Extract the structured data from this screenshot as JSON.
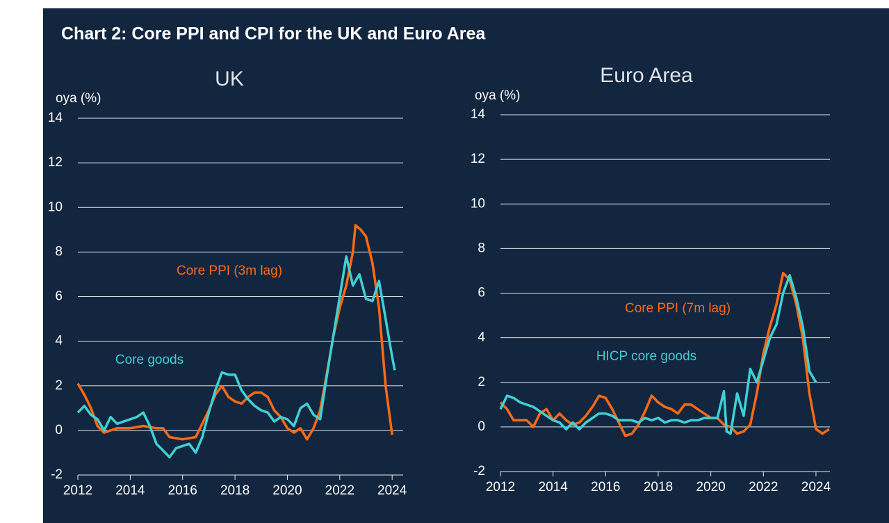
{
  "title": "Chart 2: Core PPI and CPI for the UK and Euro Area",
  "chart_data": [
    {
      "type": "line",
      "title": "UK",
      "ylabel": "oya (%)",
      "xlim": [
        2012,
        2024.42
      ],
      "xticks": [
        2012,
        2014,
        2016,
        2018,
        2020,
        2022,
        2024
      ],
      "ylim": [
        -2,
        14
      ],
      "yticks": [
        -2,
        0,
        2,
        4,
        6,
        8,
        10,
        12,
        14
      ],
      "grid": true,
      "series": [
        {
          "name": "Core PPI (3m lag)",
          "color": "#ff6a13",
          "x": [
            2012,
            2012.25,
            2012.5,
            2012.75,
            2013,
            2013.5,
            2014,
            2014.5,
            2015,
            2015.25,
            2015.5,
            2016,
            2016.5,
            2016.75,
            2017,
            2017.25,
            2017.5,
            2017.75,
            2018,
            2018.25,
            2018.5,
            2018.75,
            2019,
            2019.25,
            2019.5,
            2019.75,
            2020,
            2020.25,
            2020.5,
            2020.75,
            2021,
            2021.25,
            2021.5,
            2021.75,
            2022,
            2022.25,
            2022.5,
            2022.6,
            2022.8,
            2023,
            2023.25,
            2023.5,
            2023.75,
            2024
          ],
          "values": [
            2.1,
            1.6,
            1.0,
            0.2,
            -0.1,
            0.1,
            0.1,
            0.2,
            0.1,
            0.1,
            -0.3,
            -0.4,
            -0.3,
            0.3,
            0.9,
            1.6,
            2.0,
            1.5,
            1.3,
            1.2,
            1.5,
            1.7,
            1.7,
            1.5,
            0.9,
            0.6,
            0.1,
            -0.1,
            0.1,
            -0.4,
            0.1,
            0.9,
            2.5,
            4.2,
            5.5,
            6.5,
            8.0,
            9.2,
            9.0,
            8.7,
            7.5,
            5.5,
            2.0,
            -0.2
          ]
        },
        {
          "name": "Core goods",
          "color": "#3fd0d4",
          "x": [
            2012,
            2012.25,
            2012.5,
            2012.75,
            2013,
            2013.25,
            2013.5,
            2014,
            2014.25,
            2014.5,
            2014.75,
            2015,
            2015.25,
            2015.5,
            2015.75,
            2016,
            2016.25,
            2016.5,
            2016.75,
            2017,
            2017.25,
            2017.5,
            2017.75,
            2018,
            2018.25,
            2018.5,
            2018.75,
            2019,
            2019.25,
            2019.5,
            2019.75,
            2020,
            2020.25,
            2020.5,
            2020.75,
            2021,
            2021.25,
            2021.5,
            2021.75,
            2022,
            2022.25,
            2022.5,
            2022.75,
            2023,
            2023.25,
            2023.5,
            2023.75,
            2024,
            2024.1
          ],
          "values": [
            0.8,
            1.1,
            0.7,
            0.5,
            0.0,
            0.6,
            0.3,
            0.5,
            0.6,
            0.8,
            0.2,
            -0.6,
            -0.9,
            -1.2,
            -0.8,
            -0.7,
            -0.6,
            -1.0,
            -0.3,
            0.8,
            1.8,
            2.6,
            2.5,
            2.5,
            1.8,
            1.4,
            1.1,
            0.9,
            0.8,
            0.4,
            0.6,
            0.5,
            0.2,
            1.0,
            1.2,
            0.7,
            0.5,
            2.4,
            4.2,
            6.0,
            7.8,
            6.5,
            7.0,
            5.9,
            5.8,
            6.7,
            5.0,
            3.3,
            2.7
          ]
        }
      ]
    },
    {
      "type": "line",
      "title": "Euro Area",
      "ylabel": "oya (%)",
      "xlim": [
        2012,
        2024.53
      ],
      "xticks": [
        2012,
        2014,
        2016,
        2018,
        2020,
        2022,
        2024
      ],
      "ylim": [
        -2,
        14
      ],
      "yticks": [
        -2,
        0,
        2,
        4,
        6,
        8,
        10,
        12,
        14
      ],
      "grid": true,
      "series": [
        {
          "name": "Core PPI (7m lag)",
          "color": "#ff6a13",
          "x": [
            2012,
            2012.25,
            2012.5,
            2012.75,
            2013,
            2013.25,
            2013.5,
            2013.75,
            2014,
            2014.25,
            2014.5,
            2014.75,
            2015,
            2015.25,
            2015.5,
            2015.75,
            2016,
            2016.25,
            2016.5,
            2016.75,
            2017,
            2017.25,
            2017.5,
            2017.75,
            2018,
            2018.25,
            2018.5,
            2018.75,
            2019,
            2019.25,
            2019.5,
            2019.75,
            2020,
            2020.25,
            2020.5,
            2020.75,
            2021,
            2021.25,
            2021.5,
            2021.75,
            2022,
            2022.25,
            2022.5,
            2022.75,
            2023,
            2023.25,
            2023.5,
            2023.75,
            2024,
            2024.25,
            2024.5
          ],
          "values": [
            1.1,
            0.8,
            0.3,
            0.3,
            0.3,
            0.0,
            0.6,
            0.8,
            0.3,
            0.6,
            0.3,
            0.1,
            0.2,
            0.5,
            0.9,
            1.4,
            1.3,
            0.8,
            0.2,
            -0.4,
            -0.3,
            0.1,
            0.7,
            1.4,
            1.1,
            0.9,
            0.8,
            0.6,
            1.0,
            1.0,
            0.8,
            0.6,
            0.4,
            0.4,
            0.1,
            0.0,
            -0.3,
            -0.2,
            0.1,
            1.5,
            3.3,
            4.5,
            5.5,
            6.9,
            6.6,
            5.5,
            4.0,
            1.5,
            -0.1,
            -0.3,
            -0.1
          ]
        },
        {
          "name": "HICP core goods",
          "color": "#3fd0d4",
          "x": [
            2012,
            2012.25,
            2012.5,
            2012.75,
            2013,
            2013.25,
            2013.5,
            2013.75,
            2014,
            2014.25,
            2014.5,
            2014.75,
            2015,
            2015.25,
            2015.5,
            2015.75,
            2016,
            2016.25,
            2016.5,
            2016.75,
            2017,
            2017.25,
            2017.5,
            2017.75,
            2018,
            2018.25,
            2018.5,
            2018.75,
            2019,
            2019.25,
            2019.5,
            2019.75,
            2020,
            2020.25,
            2020.5,
            2020.6,
            2020.75,
            2021,
            2021.25,
            2021.5,
            2021.75,
            2022,
            2022.25,
            2022.5,
            2022.75,
            2023,
            2023.25,
            2023.5,
            2023.75,
            2024
          ],
          "values": [
            0.8,
            1.4,
            1.3,
            1.1,
            1.0,
            0.9,
            0.7,
            0.5,
            0.3,
            0.2,
            -0.1,
            0.2,
            -0.1,
            0.2,
            0.4,
            0.6,
            0.6,
            0.5,
            0.3,
            0.3,
            0.3,
            0.2,
            0.4,
            0.3,
            0.4,
            0.2,
            0.3,
            0.3,
            0.2,
            0.3,
            0.3,
            0.4,
            0.4,
            0.4,
            1.6,
            -0.2,
            -0.3,
            1.5,
            0.5,
            2.6,
            2.0,
            3.0,
            4.0,
            4.6,
            6.0,
            6.8,
            5.8,
            4.5,
            2.5,
            2.0
          ]
        }
      ]
    }
  ]
}
